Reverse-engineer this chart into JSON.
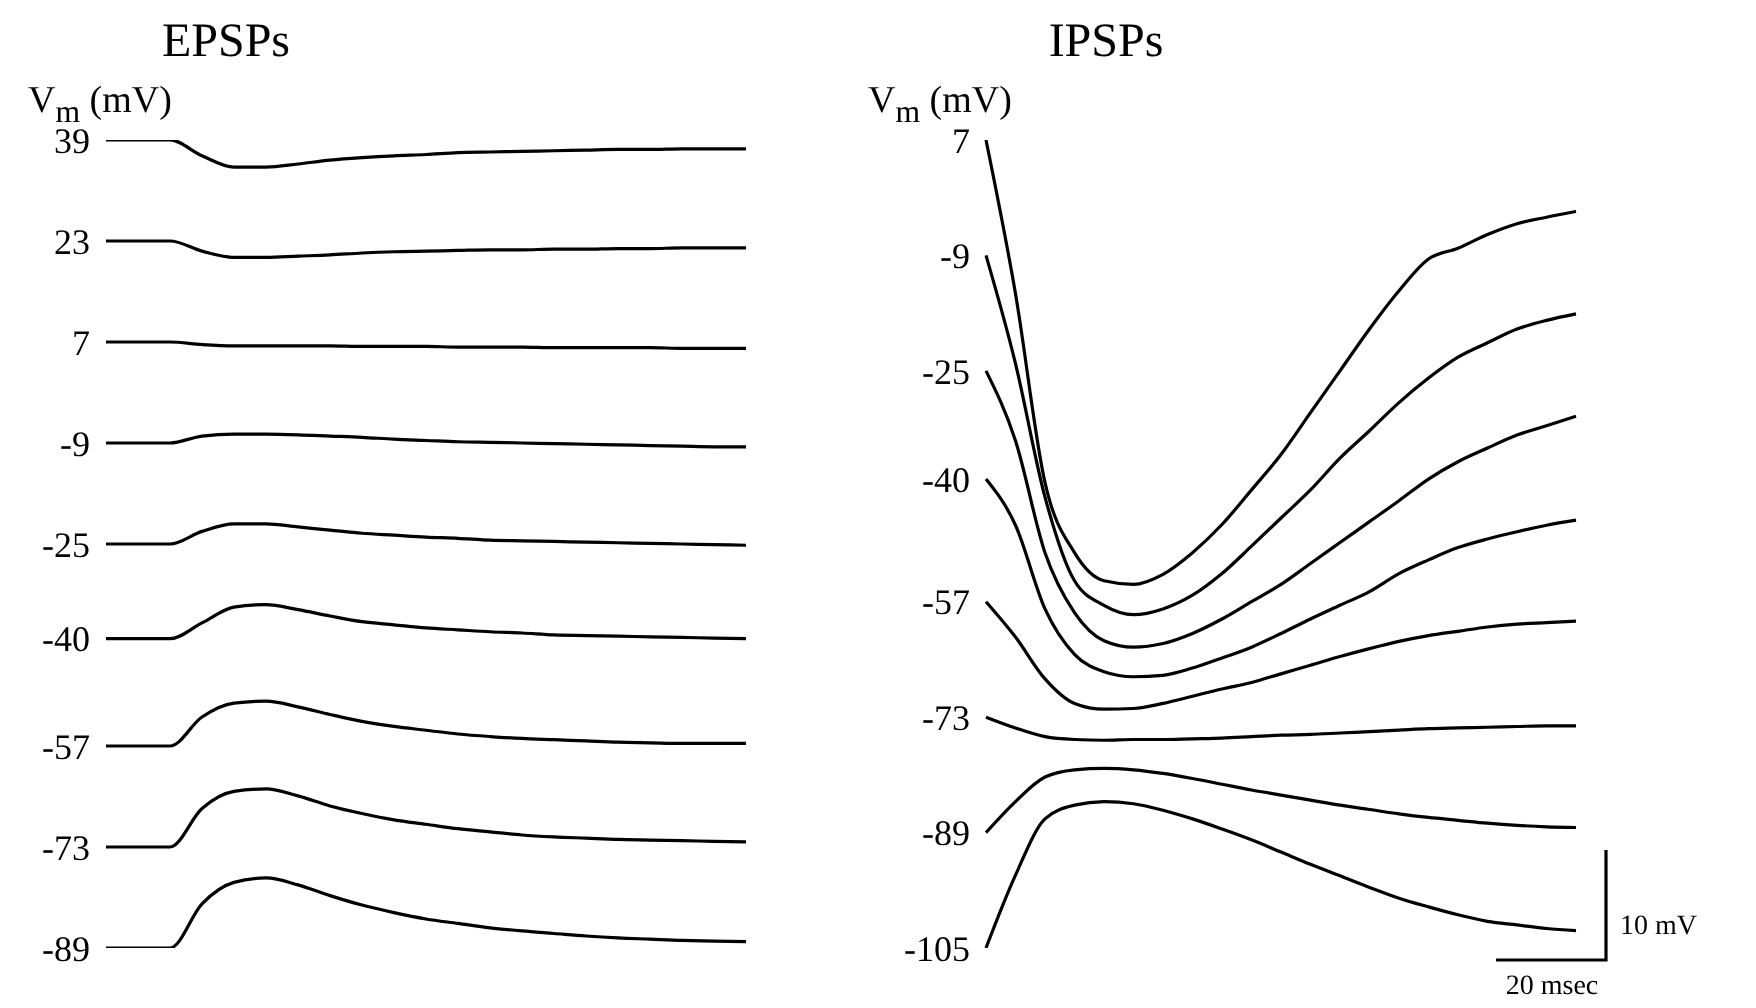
{
  "chart_data": [
    {
      "type": "line",
      "title": "EPSPs",
      "ylabel": "V$_{m}$ (mV)",
      "tick_labels": "y",
      "categories": [
        null,
        null,
        null,
        null,
        null,
        null,
        null,
        null,
        null,
        null,
        null,
        null,
        null,
        null,
        null,
        null,
        null,
        null,
        null,
        null,
        null
      ],
      "ylim": [
        -89,
        39
      ],
      "yticks": [
        39,
        23,
        7,
        -9,
        -25,
        -40,
        -57,
        -73,
        -89
      ],
      "series": [
        {
          "color": "#000000",
          "values": [
            39,
            39,
            39,
            36.5,
            34.7,
            34.7,
            35.2,
            35.8,
            36.2,
            36.5,
            36.7,
            37.0,
            37.1,
            37.2,
            37.3,
            37.4,
            37.5,
            37.5,
            37.6,
            37.6,
            37.6
          ]
        },
        {
          "color": "#000000",
          "values": [
            23,
            23,
            23,
            21.4,
            20.4,
            20.4,
            20.6,
            20.8,
            21.1,
            21.3,
            21.4,
            21.5,
            21.6,
            21.6,
            21.7,
            21.7,
            21.8,
            21.8,
            21.9,
            21.9,
            21.9
          ]
        },
        {
          "color": "#000000",
          "values": [
            7,
            7,
            7,
            6.6,
            6.4,
            6.4,
            6.4,
            6.4,
            6.3,
            6.3,
            6.3,
            6.2,
            6.2,
            6.2,
            6.1,
            6.1,
            6.1,
            6.1,
            6.0,
            6.0,
            6.0
          ]
        },
        {
          "color": "#000000",
          "values": [
            -9,
            -9,
            -9,
            -7.9,
            -7.6,
            -7.6,
            -7.7,
            -7.9,
            -8.1,
            -8.4,
            -8.6,
            -8.8,
            -8.9,
            -9.0,
            -9.1,
            -9.2,
            -9.3,
            -9.4,
            -9.5,
            -9.6,
            -9.6
          ]
        },
        {
          "color": "#000000",
          "values": [
            -25,
            -25,
            -25,
            -23.0,
            -21.8,
            -21.8,
            -22.3,
            -22.8,
            -23.3,
            -23.6,
            -23.9,
            -24.1,
            -24.4,
            -24.5,
            -24.6,
            -24.7,
            -24.8,
            -24.9,
            -25.0,
            -25.1,
            -25.2
          ]
        },
        {
          "color": "#000000",
          "values": [
            -40,
            -40,
            -40,
            -37.5,
            -35.0,
            -34.6,
            -35.4,
            -36.4,
            -37.3,
            -37.8,
            -38.3,
            -38.6,
            -38.9,
            -39.1,
            -39.4,
            -39.5,
            -39.6,
            -39.7,
            -39.8,
            -39.9,
            -40.0
          ]
        },
        {
          "color": "#000000",
          "values": [
            -57,
            -57,
            -57,
            -52.4,
            -50.2,
            -49.9,
            -50.8,
            -52.0,
            -53.1,
            -53.9,
            -54.5,
            -55.1,
            -55.5,
            -55.8,
            -56.0,
            -56.2,
            -56.4,
            -56.5,
            -56.6,
            -56.6,
            -56.6
          ]
        },
        {
          "color": "#000000",
          "values": [
            -73,
            -73,
            -73,
            -66.9,
            -64.2,
            -63.8,
            -64.9,
            -66.5,
            -67.7,
            -68.7,
            -69.4,
            -70.1,
            -70.6,
            -71.1,
            -71.4,
            -71.6,
            -71.8,
            -71.9,
            -72.0,
            -72.1,
            -72.2
          ]
        },
        {
          "color": "#000000",
          "values": [
            -89,
            -89,
            -89,
            -82.0,
            -78.6,
            -77.9,
            -79.0,
            -80.7,
            -82.2,
            -83.4,
            -84.4,
            -85.1,
            -85.8,
            -86.3,
            -86.7,
            -87.1,
            -87.4,
            -87.6,
            -87.8,
            -87.9,
            -88.0
          ]
        }
      ]
    },
    {
      "type": "line",
      "title": "IPSPs",
      "ylabel": "V$_{m}$ (mV)",
      "tick_labels": "y",
      "categories": [
        null,
        null,
        null,
        null,
        null,
        null,
        null,
        null,
        null,
        null,
        null,
        null,
        null,
        null,
        null,
        null,
        null,
        null,
        null,
        null,
        null
      ],
      "ylim": [
        -105,
        7
      ],
      "yticks": [
        7,
        -9,
        -25,
        -40,
        -57,
        -73,
        -89,
        -105
      ],
      "annotations": [
        "10 mV",
        "20 msec"
      ],
      "series": [
        {
          "color": "#000000",
          "values": [
            7,
            -14.3,
            -40.5,
            -50.2,
            -54.1,
            -54.6,
            -53.2,
            -50.2,
            -46.3,
            -41.5,
            -36.6,
            -30.8,
            -25.0,
            -19.2,
            -13.9,
            -9.5,
            -8.0,
            -6.1,
            -4.6,
            -3.7,
            -2.9
          ]
        },
        {
          "color": "#000000",
          "values": [
            -9,
            -24.0,
            -42.5,
            -54.1,
            -57.5,
            -58.8,
            -58.0,
            -56.1,
            -53.1,
            -49.3,
            -45.4,
            -41.5,
            -37.1,
            -33.3,
            -29.4,
            -26.0,
            -23.1,
            -21.1,
            -19.2,
            -18.0,
            -17.1
          ]
        },
        {
          "color": "#000000",
          "values": [
            -25,
            -34.7,
            -50.2,
            -58.5,
            -62.4,
            -63.3,
            -62.8,
            -61.4,
            -59.4,
            -57.0,
            -54.6,
            -51.7,
            -48.8,
            -45.9,
            -43.0,
            -40.0,
            -37.6,
            -35.7,
            -33.9,
            -32.6,
            -31.3
          ]
        },
        {
          "color": "#000000",
          "values": [
            -40,
            -46.4,
            -58.0,
            -64.3,
            -66.7,
            -67.4,
            -67.2,
            -66.2,
            -64.8,
            -63.3,
            -61.4,
            -59.4,
            -57.5,
            -55.6,
            -53.1,
            -51.2,
            -49.5,
            -48.3,
            -47.3,
            -46.4,
            -45.7
          ]
        },
        {
          "color": "#000000",
          "values": [
            -57,
            -61.9,
            -67.7,
            -71.1,
            -71.9,
            -71.8,
            -71.1,
            -70.1,
            -69.1,
            -68.2,
            -67.0,
            -65.8,
            -64.6,
            -63.5,
            -62.5,
            -61.7,
            -61.1,
            -60.5,
            -60.1,
            -59.9,
            -59.7
          ]
        },
        {
          "color": "#000000",
          "values": [
            -73,
            -74.5,
            -75.7,
            -76.1,
            -76.2,
            -76.1,
            -76.1,
            -76.0,
            -75.9,
            -75.7,
            -75.5,
            -75.4,
            -75.2,
            -75.0,
            -74.8,
            -74.6,
            -74.5,
            -74.4,
            -74.3,
            -74.2,
            -74.2
          ]
        },
        {
          "color": "#000000",
          "values": [
            -89,
            -84.7,
            -81.3,
            -80.3,
            -80.1,
            -80.3,
            -80.8,
            -81.5,
            -82.3,
            -83.1,
            -83.8,
            -84.5,
            -85.2,
            -85.8,
            -86.4,
            -86.9,
            -87.3,
            -87.7,
            -88.0,
            -88.2,
            -88.3
          ]
        },
        {
          "color": "#000000",
          "values": [
            -105,
            -94.9,
            -87.1,
            -85.2,
            -84.7,
            -85.0,
            -85.9,
            -87.1,
            -88.5,
            -90.0,
            -91.7,
            -93.4,
            -95.0,
            -96.6,
            -98.1,
            -99.3,
            -100.4,
            -101.3,
            -101.8,
            -102.3,
            -102.6
          ]
        }
      ]
    }
  ]
}
